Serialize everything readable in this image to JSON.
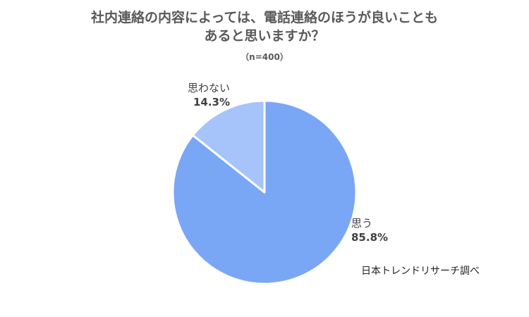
{
  "chart_data": {
    "type": "pie",
    "title": [
      "社内連絡の内容によっては、電話連絡のほうが良いことも",
      "あると思いますか？"
    ],
    "subtitle": "（n=400）",
    "slices": [
      {
        "label": "思う",
        "value": 85.8,
        "value_label": "85.8%",
        "color": "#7aa7f5"
      },
      {
        "label": "思わない",
        "value": 14.3,
        "value_label": "14.3%",
        "color": "#a6c4fa"
      }
    ],
    "start_angle": "12 o'clock",
    "direction": "clockwise",
    "legend": "none"
  },
  "source": "日本トレンドリサーチ調べ"
}
